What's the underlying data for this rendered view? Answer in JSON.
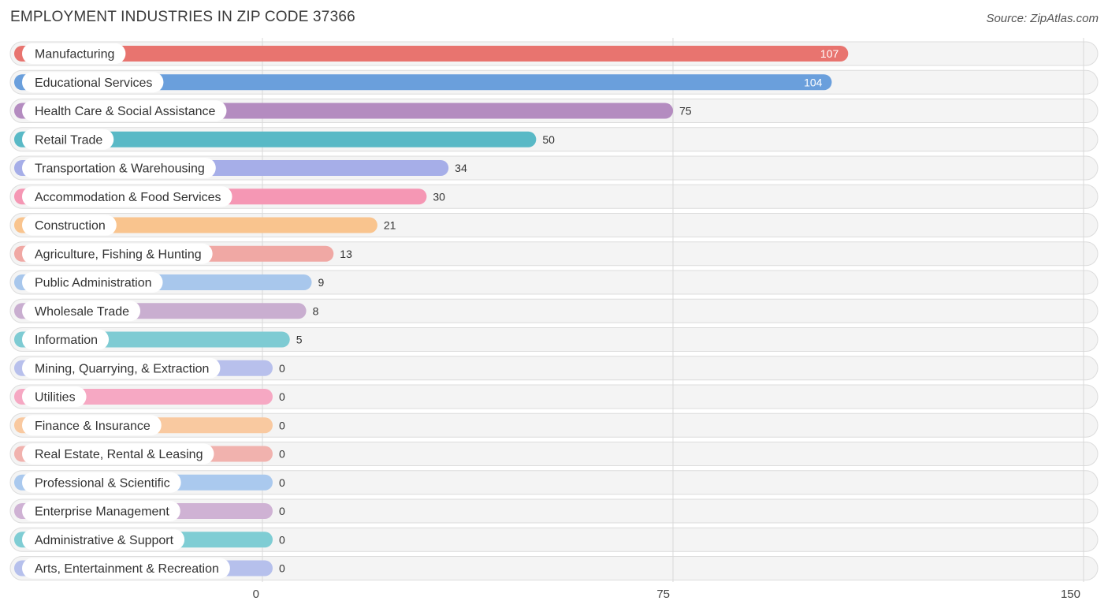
{
  "header": {
    "title": "EMPLOYMENT INDUSTRIES IN ZIP CODE 37366",
    "source": "Source: ZipAtlas.com"
  },
  "chart_data": {
    "type": "bar",
    "orientation": "horizontal",
    "title": "EMPLOYMENT INDUSTRIES IN ZIP CODE 37366",
    "xlim": [
      0,
      150
    ],
    "ticks": [
      0,
      75,
      150
    ],
    "tick_labels": [
      "0",
      "75",
      "150"
    ],
    "grid": true,
    "categories": [
      "Manufacturing",
      "Educational Services",
      "Health Care & Social Assistance",
      "Retail Trade",
      "Transportation & Warehousing",
      "Accommodation & Food Services",
      "Construction",
      "Agriculture, Fishing & Hunting",
      "Public Administration",
      "Wholesale Trade",
      "Information",
      "Mining, Quarrying, & Extraction",
      "Utilities",
      "Finance & Insurance",
      "Real Estate, Rental & Leasing",
      "Professional & Scientific",
      "Enterprise Management",
      "Administrative & Support",
      "Arts, Entertainment & Recreation"
    ],
    "values": [
      107,
      104,
      75,
      50,
      34,
      30,
      21,
      13,
      9,
      8,
      5,
      0,
      0,
      0,
      0,
      0,
      0,
      0,
      0
    ],
    "value_labels": [
      "107",
      "104",
      "75",
      "50",
      "34",
      "30",
      "21",
      "13",
      "9",
      "8",
      "5",
      "0",
      "0",
      "0",
      "0",
      "0",
      "0",
      "0",
      "0"
    ],
    "colors": [
      "#e8746f",
      "#6a9fdc",
      "#b48cc0",
      "#59b9c6",
      "#a6aee8",
      "#f597b4",
      "#f9c48e",
      "#f0a8a4",
      "#a8c7ec",
      "#c9aed0",
      "#7ecbd3",
      "#b8c0ec",
      "#f6a8c3",
      "#f9c9a0",
      "#f1b2ae",
      "#aac9ee",
      "#cfb2d4",
      "#7fcdd4",
      "#b6c0ec"
    ]
  }
}
